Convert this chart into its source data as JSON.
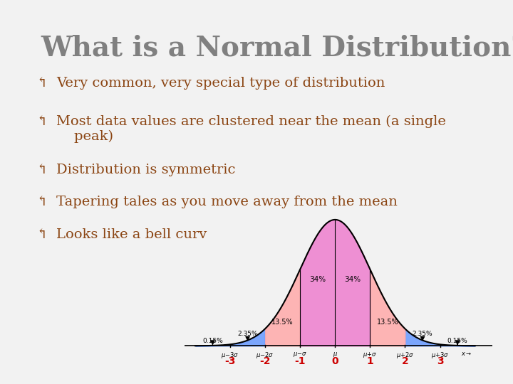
{
  "title": "What is a Normal Distribution?",
  "title_color": "#808080",
  "title_fontsize": 28,
  "background_color": "#f2f2f2",
  "bullet_color": "#8B4513",
  "bullets": [
    "Very common, very special type of distribution",
    "Most data values are clustered near the mean (a single\n    peak)",
    "Distribution is symmetric",
    "Tapering tales as you move away from the mean",
    "Looks like a bell curv"
  ],
  "bullet_fontsize": 14,
  "fill_colors": {
    "outer": "#6699ff",
    "inner_light": "#ffaaaa",
    "center": "#ee77cc"
  },
  "axis_label_color": "#cc0000",
  "sigma_labels": [
    "-3",
    "-2",
    "-1",
    "0",
    "1",
    "2",
    "3"
  ],
  "sigma_values": [
    -3,
    -2,
    -1,
    0,
    1,
    2,
    3
  ]
}
